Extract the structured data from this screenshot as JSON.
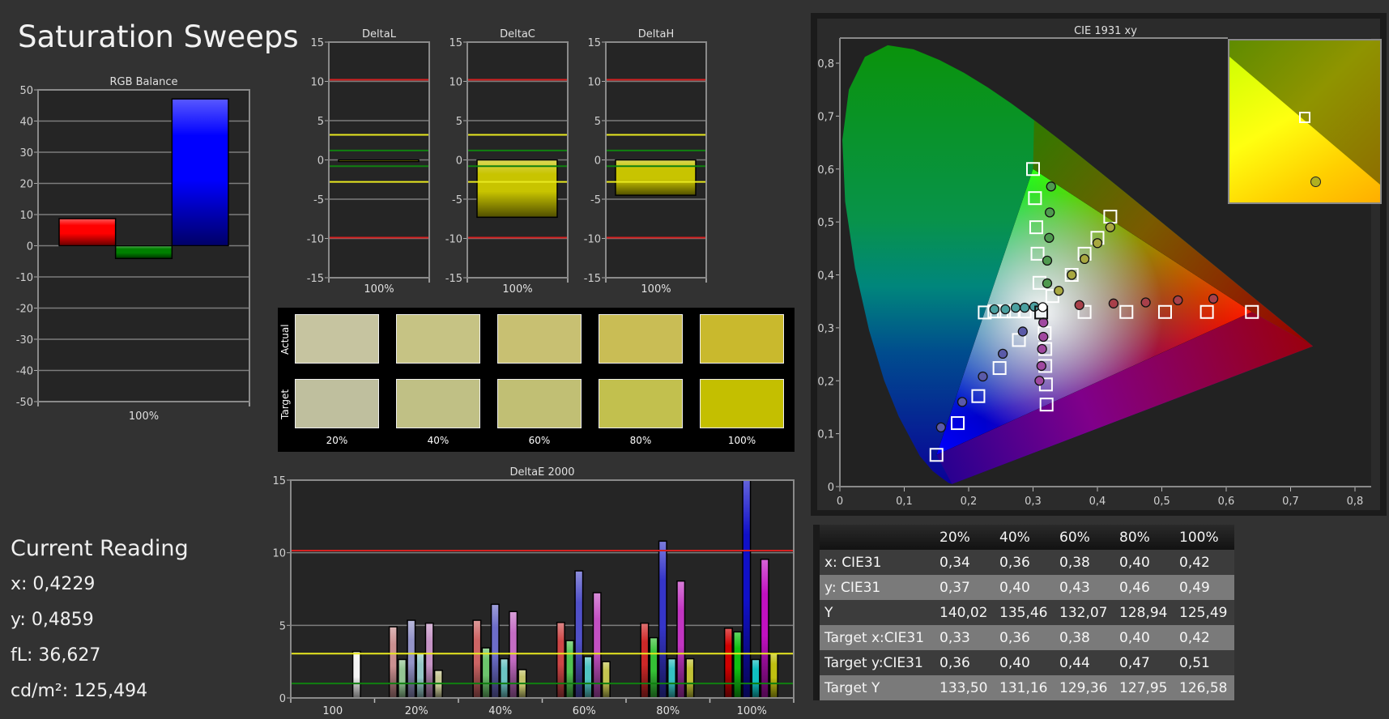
{
  "title": "Saturation Sweeps",
  "current_reading": {
    "heading": "Current Reading",
    "lines": [
      "x: 0,4229",
      "y: 0,4859",
      "fL: 36,627",
      "cd/m²: 125,494"
    ]
  },
  "swatches": {
    "row_labels": [
      "Actual",
      "Target"
    ],
    "columns": [
      "20%",
      "40%",
      "60%",
      "80%",
      "100%"
    ],
    "actual_colors": [
      "#c6c4a0",
      "#c6c384",
      "#c8c072",
      "#c9bd55",
      "#c9b92d"
    ],
    "target_colors": [
      "#bfbf9e",
      "#c0c085",
      "#c1bf74",
      "#c2c04e",
      "#c4bf00"
    ]
  },
  "table": {
    "headers": [
      "",
      "20%",
      "40%",
      "60%",
      "80%",
      "100%"
    ],
    "rows": [
      {
        "label": "x: CIE31",
        "values": [
          "0,34",
          "0,36",
          "0,38",
          "0,40",
          "0,42"
        ]
      },
      {
        "label": "y: CIE31",
        "values": [
          "0,37",
          "0,40",
          "0,43",
          "0,46",
          "0,49"
        ]
      },
      {
        "label": "Y",
        "values": [
          "140,02",
          "135,46",
          "132,07",
          "128,94",
          "125,49"
        ]
      },
      {
        "label": "Target x:CIE31",
        "values": [
          "0,33",
          "0,36",
          "0,38",
          "0,40",
          "0,42"
        ]
      },
      {
        "label": "Target y:CIE31",
        "values": [
          "0,36",
          "0,40",
          "0,44",
          "0,47",
          "0,51"
        ]
      },
      {
        "label": "Target Y",
        "values": [
          "133,50",
          "131,16",
          "129,36",
          "127,95",
          "126,58"
        ]
      }
    ]
  },
  "chart_data": [
    {
      "type": "bar",
      "title": "RGB Balance",
      "categories": [
        "100%"
      ],
      "series": [
        {
          "color": "#ff0000",
          "values": [
            8.7
          ]
        },
        {
          "color": "#008000",
          "values": [
            -4.1
          ]
        },
        {
          "color": "#0000ff",
          "values": [
            47.1
          ]
        }
      ],
      "ylim": [
        -50,
        50
      ],
      "yticks": [
        "-50",
        "-40",
        "-30",
        "-20",
        "-10",
        "0",
        "10",
        "20",
        "30",
        "40",
        "50"
      ],
      "grid": true
    },
    {
      "type": "bar",
      "title": "DeltaL",
      "categories": [
        "100%"
      ],
      "values": [
        -0.2
      ],
      "bar_color": "#c8c400",
      "ylim": [
        -15,
        15
      ],
      "yticks": [
        "-15",
        "-10",
        "-5",
        "0",
        "5",
        "10",
        "15"
      ],
      "reference_lines": [
        {
          "value": 10.2,
          "color": "#d42020"
        },
        {
          "value": -9.9,
          "color": "#d42020"
        },
        {
          "value": 3.2,
          "color": "#e8e820"
        },
        {
          "value": -2.8,
          "color": "#e8e820"
        },
        {
          "value": 1.2,
          "color": "#108010"
        },
        {
          "value": -0.8,
          "color": "#108010"
        }
      ],
      "grid": true
    },
    {
      "type": "bar",
      "title": "DeltaC",
      "categories": [
        "100%"
      ],
      "values": [
        -7.3
      ],
      "bar_color": "#c8c400",
      "ylim": [
        -15,
        15
      ],
      "yticks": [
        "-15",
        "-10",
        "-5",
        "0",
        "5",
        "10",
        "15"
      ],
      "reference_lines": [
        {
          "value": 10.2,
          "color": "#d42020"
        },
        {
          "value": -9.9,
          "color": "#d42020"
        },
        {
          "value": 3.2,
          "color": "#e8e820"
        },
        {
          "value": -2.8,
          "color": "#e8e820"
        },
        {
          "value": 1.2,
          "color": "#108010"
        },
        {
          "value": -0.8,
          "color": "#108010"
        }
      ],
      "grid": true
    },
    {
      "type": "bar",
      "title": "DeltaH",
      "categories": [
        "100%"
      ],
      "values": [
        -4.5
      ],
      "bar_color": "#c8c400",
      "ylim": [
        -15,
        15
      ],
      "yticks": [
        "-15",
        "-10",
        "-5",
        "0",
        "5",
        "10",
        "15"
      ],
      "reference_lines": [
        {
          "value": 10.2,
          "color": "#d42020"
        },
        {
          "value": -9.9,
          "color": "#d42020"
        },
        {
          "value": 3.2,
          "color": "#e8e820"
        },
        {
          "value": -2.8,
          "color": "#e8e820"
        },
        {
          "value": 1.2,
          "color": "#108010"
        },
        {
          "value": -0.8,
          "color": "#108010"
        }
      ],
      "grid": true
    },
    {
      "type": "bar",
      "title": "DeltaE 2000",
      "categories": [
        "100",
        "20%",
        "40%",
        "60%",
        "80%",
        "100%"
      ],
      "series": [
        {
          "color": "#ffffff",
          "values": [
            3.2,
            null,
            null,
            null,
            null,
            null
          ]
        },
        {
          "color": "#d00000",
          "values": [
            null,
            4.9,
            5.35,
            5.2,
            5.15,
            4.8
          ]
        },
        {
          "color": "#10c010",
          "values": [
            null,
            2.65,
            3.45,
            3.95,
            4.15,
            4.55
          ]
        },
        {
          "color": "#1010c8",
          "values": [
            null,
            5.35,
            6.45,
            8.75,
            10.8,
            15.2
          ]
        },
        {
          "color": "#10c0c0",
          "values": [
            null,
            3.1,
            2.7,
            2.85,
            2.7,
            2.65
          ]
        },
        {
          "color": "#c010c0",
          "values": [
            null,
            5.15,
            5.95,
            7.25,
            8.05,
            9.55
          ]
        },
        {
          "color": "#c0c010",
          "values": [
            null,
            1.9,
            1.95,
            2.5,
            2.7,
            3.1
          ]
        }
      ],
      "ylim": [
        0,
        15
      ],
      "yticks": [
        "0",
        "5",
        "10",
        "15"
      ],
      "reference_lines": [
        {
          "value": 10.15,
          "color": "#d42020"
        },
        {
          "value": 3.05,
          "color": "#e8e820"
        },
        {
          "value": 1.0,
          "color": "#108010"
        }
      ],
      "grid": true
    },
    {
      "type": "scatter",
      "title": "CIE 1931 xy",
      "xlim": [
        0,
        0.8
      ],
      "ylim": [
        0,
        0.8
      ],
      "xticks": [
        "0",
        "0,1",
        "0,2",
        "0,3",
        "0,4",
        "0,5",
        "0,6",
        "0,7",
        "0,8"
      ],
      "yticks": [
        "0",
        "0,1",
        "0,2",
        "0,3",
        "0,4",
        "0,5",
        "0,6",
        "0,7",
        "0,8"
      ],
      "gamut": {
        "red": [
          0.64,
          0.33
        ],
        "green": [
          0.3,
          0.6
        ],
        "blue": [
          0.15,
          0.06
        ]
      },
      "white": {
        "target": [
          0.3127,
          0.329
        ],
        "measured": [
          0.315,
          0.339
        ]
      },
      "series": [
        {
          "color": "#ff0000",
          "marker_color": "#a8404a",
          "targets": [
            [
              0.38,
              0.33
            ],
            [
              0.445,
              0.33
            ],
            [
              0.505,
              0.33
            ],
            [
              0.57,
              0.33
            ],
            [
              0.64,
              0.33
            ]
          ],
          "measured": [
            [
              0.372,
              0.343
            ],
            [
              0.425,
              0.346
            ],
            [
              0.475,
              0.348
            ],
            [
              0.525,
              0.352
            ],
            [
              0.58,
              0.355
            ]
          ]
        },
        {
          "color": "#00ff00",
          "marker_color": "#4f9a4f",
          "targets": [
            [
              0.31,
              0.385
            ],
            [
              0.307,
              0.44
            ],
            [
              0.305,
              0.49
            ],
            [
              0.303,
              0.545
            ],
            [
              0.3,
              0.6
            ]
          ],
          "measured": [
            [
              0.322,
              0.384
            ],
            [
              0.322,
              0.427
            ],
            [
              0.325,
              0.47
            ],
            [
              0.326,
              0.518
            ],
            [
              0.328,
              0.567
            ]
          ]
        },
        {
          "color": "#0000ff",
          "marker_color": "#5a5aa8",
          "targets": [
            [
              0.278,
              0.277
            ],
            [
              0.248,
              0.224
            ],
            [
              0.215,
              0.171
            ],
            [
              0.183,
              0.12
            ],
            [
              0.15,
              0.06
            ]
          ],
          "measured": [
            [
              0.284,
              0.293
            ],
            [
              0.253,
              0.251
            ],
            [
              0.222,
              0.208
            ],
            [
              0.19,
              0.16
            ],
            [
              0.157,
              0.112
            ]
          ]
        },
        {
          "color": "#00ffff",
          "marker_color": "#4aa0a0",
          "targets": [
            [
              0.287,
              0.331
            ],
            [
              0.27,
              0.331
            ],
            [
              0.255,
              0.331
            ],
            [
              0.24,
              0.331
            ],
            [
              0.225,
              0.329
            ]
          ],
          "measured": [
            [
              0.302,
              0.34
            ],
            [
              0.287,
              0.338
            ],
            [
              0.273,
              0.338
            ],
            [
              0.257,
              0.335
            ],
            [
              0.24,
              0.335
            ]
          ]
        },
        {
          "color": "#ff00ff",
          "marker_color": "#a048a0",
          "targets": [
            [
              0.318,
              0.29
            ],
            [
              0.319,
              0.26
            ],
            [
              0.319,
              0.228
            ],
            [
              0.32,
              0.193
            ],
            [
              0.321,
              0.155
            ]
          ],
          "measured": [
            [
              0.316,
              0.31
            ],
            [
              0.316,
              0.283
            ],
            [
              0.314,
              0.26
            ],
            [
              0.313,
              0.228
            ],
            [
              0.31,
              0.2
            ]
          ]
        },
        {
          "color": "#ffff00",
          "marker_color": "#a8a840",
          "targets": [
            [
              0.33,
              0.36
            ],
            [
              0.36,
              0.4
            ],
            [
              0.38,
              0.44
            ],
            [
              0.4,
              0.47
            ],
            [
              0.42,
              0.51
            ]
          ],
          "measured": [
            [
              0.34,
              0.37
            ],
            [
              0.36,
              0.4
            ],
            [
              0.38,
              0.43
            ],
            [
              0.4,
              0.46
            ],
            [
              0.42,
              0.49
            ]
          ]
        }
      ]
    }
  ]
}
